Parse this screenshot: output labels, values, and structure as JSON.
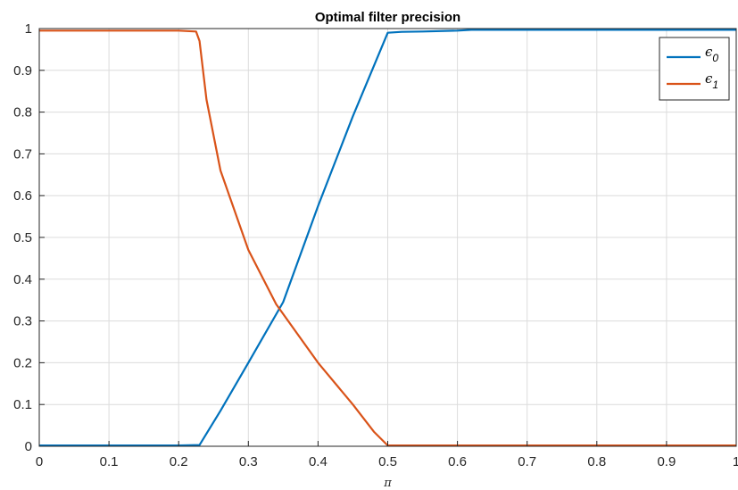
{
  "chart_data": {
    "type": "line",
    "title": "Optimal filter precision",
    "xlabel": "π",
    "ylabel": "",
    "xlim": [
      0,
      1
    ],
    "ylim": [
      0,
      1
    ],
    "x_ticks": [
      "0",
      "0.1",
      "0.2",
      "0.3",
      "0.4",
      "0.5",
      "0.6",
      "0.7",
      "0.8",
      "0.9",
      "1"
    ],
    "y_ticks": [
      "0",
      "0.1",
      "0.2",
      "0.3",
      "0.4",
      "0.5",
      "0.6",
      "0.7",
      "0.8",
      "0.9",
      "1"
    ],
    "grid": true,
    "legend_position": "top-right",
    "series": [
      {
        "name": "ϵ",
        "subscript": "0",
        "color": "#0072BD",
        "x": [
          0,
          0.1,
          0.2,
          0.23,
          0.26,
          0.3,
          0.35,
          0.4,
          0.45,
          0.5,
          0.52,
          0.55,
          0.6,
          0.62,
          0.7,
          0.8,
          0.9,
          1.0
        ],
        "y": [
          0.002,
          0.002,
          0.002,
          0.003,
          0.085,
          0.2,
          0.345,
          0.575,
          0.79,
          0.99,
          0.992,
          0.993,
          0.995,
          0.997,
          0.997,
          0.997,
          0.997,
          0.997
        ]
      },
      {
        "name": "ϵ",
        "subscript": "1",
        "color": "#D95319",
        "x": [
          0,
          0.1,
          0.2,
          0.225,
          0.23,
          0.24,
          0.26,
          0.3,
          0.34,
          0.4,
          0.45,
          0.48,
          0.5,
          0.6,
          0.7,
          0.8,
          0.9,
          1.0
        ],
        "y": [
          0.995,
          0.995,
          0.995,
          0.993,
          0.97,
          0.83,
          0.66,
          0.47,
          0.34,
          0.2,
          0.1,
          0.035,
          0.002,
          0.002,
          0.002,
          0.002,
          0.002,
          0.002
        ]
      }
    ]
  }
}
